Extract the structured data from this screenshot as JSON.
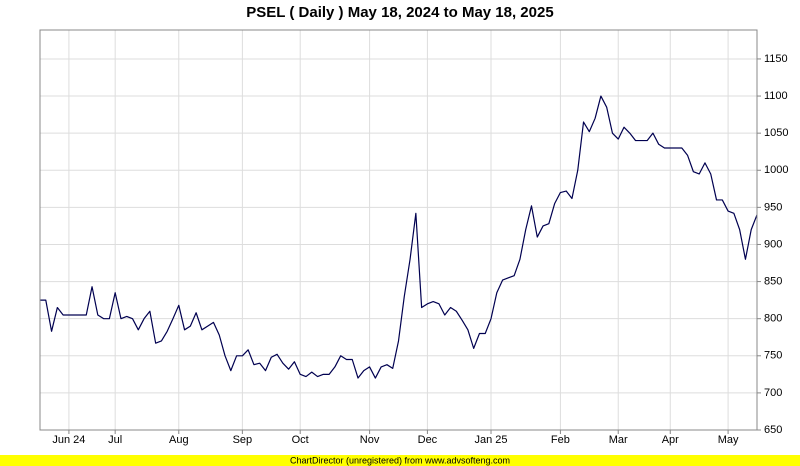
{
  "chart_data": {
    "type": "line",
    "title": "PSEL ( Daily ) May 18, 2024 to May 18, 2025",
    "footer": "ChartDirector (unregistered) from www.advsofteng.com",
    "categories": [
      null,
      null,
      null,
      null,
      null,
      "Jun 24",
      null,
      null,
      null,
      null,
      null,
      null,
      null,
      "Jul",
      null,
      null,
      null,
      null,
      null,
      null,
      null,
      null,
      null,
      null,
      "Aug",
      null,
      null,
      null,
      null,
      null,
      null,
      null,
      null,
      null,
      null,
      "Sep",
      null,
      null,
      null,
      null,
      null,
      null,
      null,
      null,
      null,
      "Oct",
      null,
      null,
      null,
      null,
      null,
      null,
      null,
      null,
      null,
      null,
      null,
      "Nov",
      null,
      null,
      null,
      null,
      null,
      null,
      null,
      null,
      null,
      "Dec",
      null,
      null,
      null,
      null,
      null,
      null,
      null,
      null,
      null,
      null,
      "Jan 25",
      null,
      null,
      null,
      null,
      null,
      null,
      null,
      null,
      null,
      null,
      null,
      "Feb",
      null,
      null,
      null,
      null,
      null,
      null,
      null,
      null,
      null,
      "Mar",
      null,
      null,
      null,
      null,
      null,
      null,
      null,
      null,
      "Apr",
      null,
      null,
      null,
      null,
      null,
      null,
      null,
      null,
      null,
      "May",
      null,
      null,
      null,
      null,
      null
    ],
    "values": [
      825,
      825,
      783,
      815,
      805,
      805,
      805,
      805,
      805,
      843,
      805,
      800,
      800,
      835,
      800,
      803,
      800,
      785,
      800,
      810,
      767,
      770,
      783,
      800,
      818,
      785,
      790,
      808,
      785,
      790,
      795,
      778,
      750,
      730,
      750,
      750,
      758,
      738,
      740,
      730,
      748,
      752,
      740,
      732,
      742,
      725,
      722,
      728,
      722,
      725,
      725,
      735,
      750,
      745,
      745,
      720,
      730,
      735,
      720,
      735,
      738,
      733,
      770,
      830,
      880,
      942,
      815,
      820,
      823,
      820,
      805,
      815,
      810,
      798,
      785,
      760,
      780,
      780,
      800,
      835,
      852,
      855,
      858,
      880,
      920,
      952,
      910,
      925,
      928,
      955,
      970,
      972,
      962,
      1000,
      1065,
      1052,
      1070,
      1100,
      1085,
      1050,
      1042,
      1058,
      1050,
      1040,
      1040,
      1040,
      1050,
      1035,
      1030,
      1030,
      1030,
      1030,
      1020,
      998,
      995,
      1010,
      995,
      960,
      960,
      945,
      942,
      920,
      880,
      920,
      940
    ],
    "color": "#000050",
    "ylim": [
      650,
      1189
    ],
    "yticks": [
      650,
      700,
      750,
      800,
      850,
      900,
      950,
      1000,
      1050,
      1100,
      1150
    ],
    "grid": true
  }
}
